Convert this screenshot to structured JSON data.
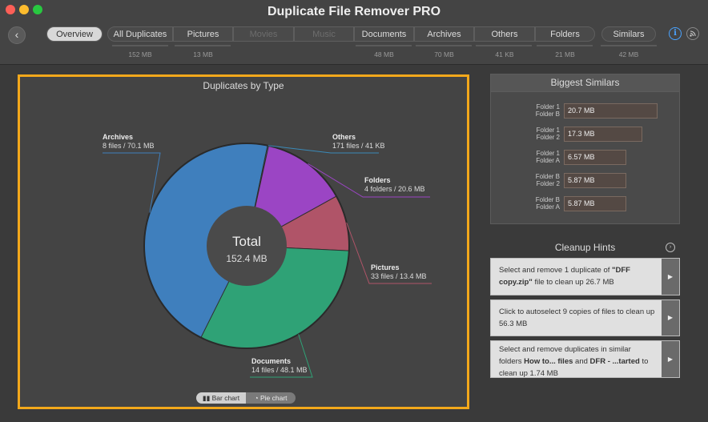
{
  "app": {
    "title": "Duplicate File Remover PRO"
  },
  "toolbar": {
    "back_label": "‹",
    "tabs": [
      {
        "label": "Overview",
        "size": ""
      },
      {
        "label": "All Duplicates",
        "size": "152 MB"
      },
      {
        "label": "Pictures",
        "size": "13 MB"
      },
      {
        "label": "Movies",
        "size": ""
      },
      {
        "label": "Music",
        "size": ""
      },
      {
        "label": "Documents",
        "size": "48 MB"
      },
      {
        "label": "Archives",
        "size": "70 MB"
      },
      {
        "label": "Others",
        "size": "41 KB"
      },
      {
        "label": "Folders",
        "size": "21 MB"
      },
      {
        "label": "Similars",
        "size": "42 MB"
      }
    ],
    "info_icon": "info-icon",
    "rss_icon": "rss-icon"
  },
  "chart": {
    "title": "Duplicates by Type",
    "center_label": "Total",
    "center_value": "152.4 MB",
    "toggle": {
      "bar": "Bar chart",
      "pie": "Pie chart"
    }
  },
  "chart_data": {
    "type": "pie",
    "title": "Duplicates by Type",
    "total": "152.4 MB",
    "slices": [
      {
        "name": "Archives",
        "detail": "8 files / 70.1 MB",
        "value": 70.1,
        "color": "#3f7fbd"
      },
      {
        "name": "Others",
        "detail": "171 files / 41 KB",
        "value": 0.041,
        "color": "#3a8ab8"
      },
      {
        "name": "Folders",
        "detail": "4 folders / 20.6 MB",
        "value": 20.6,
        "color": "#9b45c4"
      },
      {
        "name": "Pictures",
        "detail": "33 files / 13.4 MB",
        "value": 13.4,
        "color": "#b05468"
      },
      {
        "name": "Documents",
        "detail": "14 files / 48.1 MB",
        "value": 48.1,
        "color": "#2fa276"
      }
    ]
  },
  "similars": {
    "title": "Biggest Similars",
    "items": [
      {
        "a": "Folder 1",
        "b": "Folder B",
        "size": "20.7 MB",
        "value": 20.7
      },
      {
        "a": "Folder 1",
        "b": "Folder 2",
        "size": "17.3 MB",
        "value": 17.3
      },
      {
        "a": "Folder 1",
        "b": "Folder A",
        "size": "6.57 MB",
        "value": 6.57
      },
      {
        "a": "Folder B",
        "b": "Folder 2",
        "size": "5.87 MB",
        "value": 5.87
      },
      {
        "a": "Folder B",
        "b": "Folder A",
        "size": "5.87 MB",
        "value": 5.87
      }
    ]
  },
  "hints": {
    "title": "Cleanup Hints",
    "items": [
      {
        "pre": "Select and remove 1 duplicate of ",
        "bold": "\"DFF copy.zip\"",
        "post": " file to clean up 26.7 MB"
      },
      {
        "pre": "Click to autoselect 9 copies of files to clean up 56.3 MB",
        "bold": "",
        "post": ""
      },
      {
        "pre": "Select and remove duplicates in similar folders ",
        "bold": "How to... files",
        "mid": " and ",
        "bold2": "DFR - ...tarted",
        "post": " to clean up 1.74 MB"
      }
    ]
  }
}
